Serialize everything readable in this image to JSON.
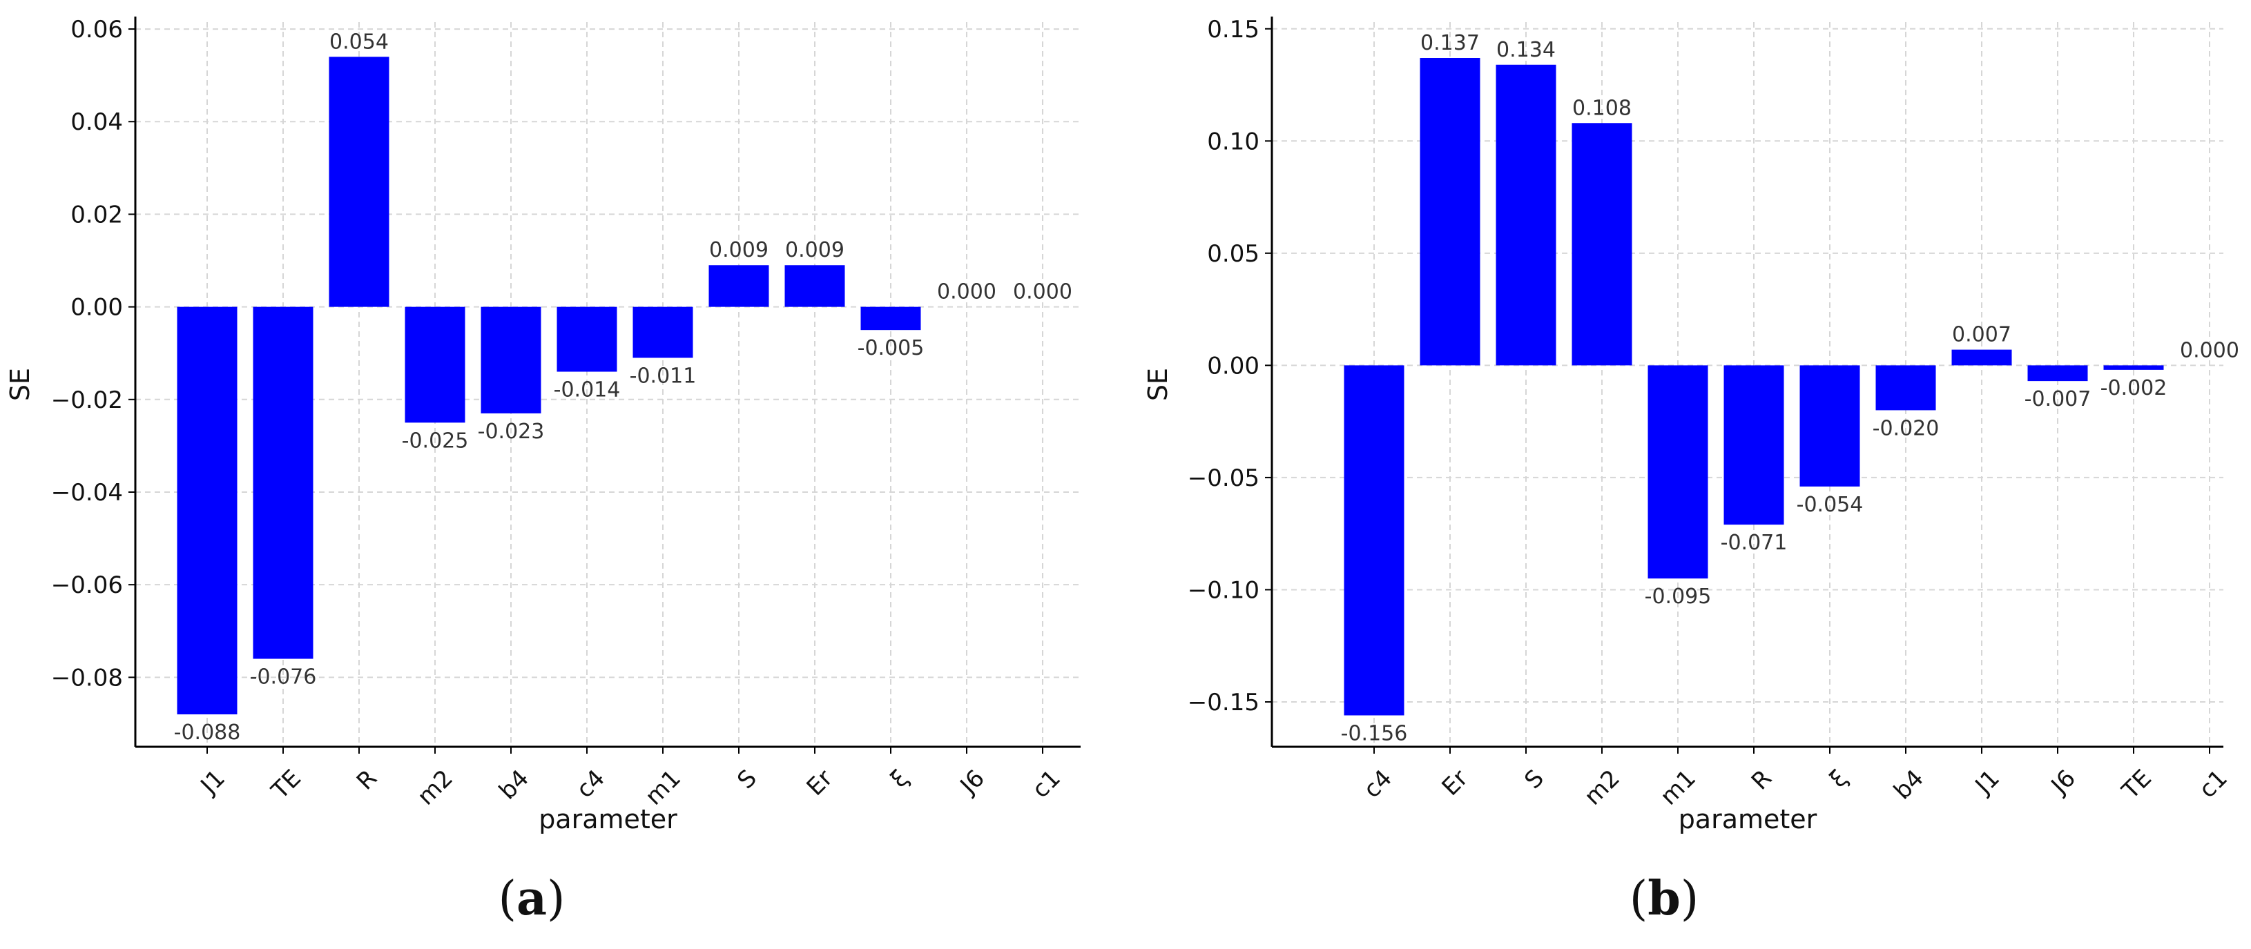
{
  "chart_data": [
    {
      "type": "bar",
      "panel_label": "a",
      "xlabel": "parameter",
      "ylabel": "SE",
      "categories": [
        "J1",
        "TE",
        "R",
        "m2",
        "b4",
        "c4",
        "m1",
        "S",
        "Er",
        "ξ",
        "J6",
        "c1"
      ],
      "values": [
        -0.088,
        -0.076,
        0.054,
        -0.025,
        -0.023,
        -0.014,
        -0.011,
        0.009,
        0.009,
        -0.005,
        0.0,
        0.0
      ],
      "value_labels": [
        "-0.088",
        "-0.076",
        "0.054",
        "-0.025",
        "-0.023",
        "-0.014",
        "-0.011",
        "0.009",
        "0.009",
        "-0.005",
        "0.000",
        "0.000"
      ],
      "yticks": [
        0.06,
        0.04,
        0.02,
        0.0,
        -0.02,
        -0.04,
        -0.06,
        -0.08
      ],
      "ytick_labels": [
        "0.06",
        "0.04",
        "0.02",
        "0.00",
        "−0.02",
        "−0.04",
        "−0.06",
        "−0.08"
      ],
      "ylim": [
        -0.095,
        0.0615
      ],
      "bar_color": "#0000ff",
      "grid": true
    },
    {
      "type": "bar",
      "panel_label": "b",
      "xlabel": "parameter",
      "ylabel": "SE",
      "categories": [
        "c4",
        "Er",
        "S",
        "m2",
        "m1",
        "R",
        "ξ",
        "b4",
        "J1",
        "J6",
        "TE",
        "c1"
      ],
      "values": [
        -0.156,
        0.137,
        0.134,
        0.108,
        -0.095,
        -0.071,
        -0.054,
        -0.02,
        0.007,
        -0.007,
        -0.002,
        0.0
      ],
      "value_labels": [
        "-0.156",
        "0.137",
        "0.134",
        "0.108",
        "-0.095",
        "-0.071",
        "-0.054",
        "-0.020",
        "0.007",
        "-0.007",
        "-0.002",
        "0.000"
      ],
      "yticks": [
        0.15,
        0.1,
        0.05,
        0.0,
        -0.05,
        -0.1,
        -0.15
      ],
      "ytick_labels": [
        "0.15",
        "0.10",
        "0.05",
        "0.00",
        "−0.05",
        "−0.10",
        "−0.15"
      ],
      "ylim": [
        -0.17,
        0.153
      ],
      "bar_color": "#0000ff",
      "grid": true
    }
  ]
}
